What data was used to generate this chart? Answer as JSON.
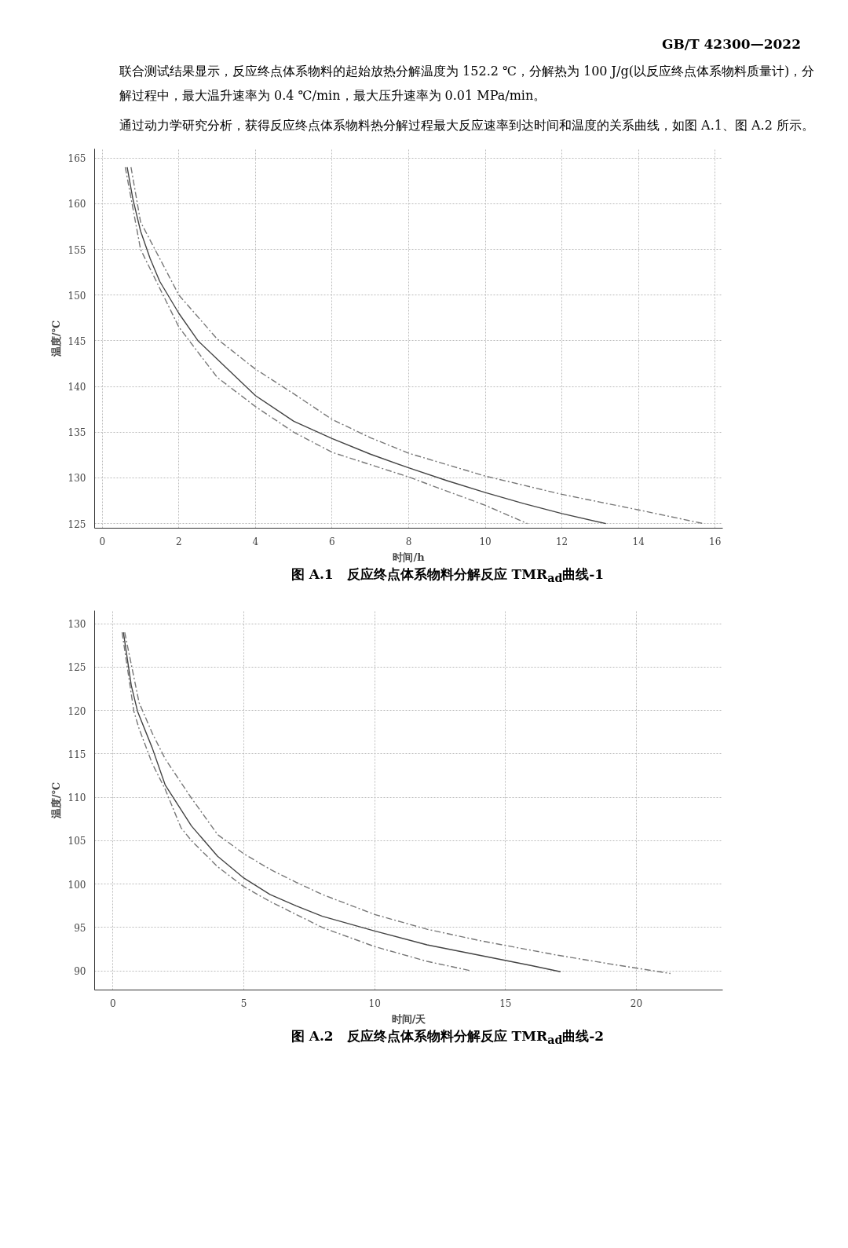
{
  "chart_data": [
    {
      "type": "line",
      "title": "图 A.1　反应终点体系物料分解反应 TMR$_{ad}$曲线-1",
      "xlabel": "时间/h",
      "ylabel": "温度/℃",
      "annotations": [
        "GB/T 42300—2022",
        "联合测试结果显示，反应终点体系物料的起始放热分解温度为 152.2 ℃，分解热为 100 J/g(以反应终点体系物料质量计)，分解过程中，最大温升速率为 0.4 ℃/min，最大压升速率为 0.01 MPa/min。",
        "通过动力学研究分析，获得反应终点体系物料热分解过程最大反应速率到达时间和温度的关系曲线，如图 A.1、图 A.2 所示。"
      ],
      "xlim": [
        -0.2,
        16.2
      ],
      "ylim": [
        124.5,
        166
      ],
      "xticks": [
        0,
        2,
        4,
        6,
        8,
        10,
        12,
        14,
        16
      ],
      "yticks": [
        125,
        130,
        135,
        140,
        145,
        150,
        155,
        160,
        165
      ],
      "grid": true,
      "marker": "none",
      "series": [
        {
          "color": "#777777",
          "line_style": "dashed",
          "x": [
            0.75,
            1,
            1.5,
            2,
            3,
            4,
            5,
            6,
            7,
            8,
            10,
            12,
            14,
            15.7
          ],
          "values": [
            164,
            158,
            154,
            150,
            145.2,
            141.9,
            139.2,
            136.4,
            134.4,
            132.7,
            130.2,
            128.2,
            126.5,
            125
          ]
        },
        {
          "color": "#444444",
          "line_style": "solid",
          "x": [
            0.65,
            0.8,
            1,
            1.25,
            1.5,
            2,
            2.5,
            3,
            4,
            5,
            6,
            7,
            8,
            9,
            10,
            11,
            12,
            13.15
          ],
          "values": [
            164,
            160.5,
            157,
            154,
            151.5,
            148,
            145,
            143,
            139,
            136.2,
            134.3,
            132.6,
            131.1,
            129.7,
            128.4,
            127.2,
            126.1,
            125
          ]
        },
        {
          "color": "#777777",
          "line_style": "dashed",
          "x": [
            0.6,
            1,
            2,
            3,
            4,
            5,
            6,
            8,
            10,
            11.1
          ],
          "values": [
            164,
            155,
            146.5,
            141,
            137.8,
            135,
            132.8,
            130.1,
            127,
            125
          ]
        }
      ]
    },
    {
      "type": "line",
      "title": "图 A.2　反应终点体系物料分解反应 TMR$_{ad}$曲线-2",
      "xlabel": "时间/天",
      "ylabel": "温度/℃",
      "xlim": [
        -0.7,
        23.3
      ],
      "ylim": [
        87.8,
        131.5
      ],
      "xticks": [
        0,
        5,
        10,
        15,
        20
      ],
      "yticks": [
        90,
        95,
        100,
        105,
        110,
        115,
        120,
        125,
        130
      ],
      "grid": true,
      "marker": "none",
      "series": [
        {
          "color": "#777777",
          "line_style": "dashed",
          "x": [
            0.45,
            1,
            1.5,
            2,
            3,
            4,
            5,
            6,
            7,
            8,
            10,
            12,
            14,
            17,
            19,
            21.3
          ],
          "values": [
            129,
            120.9,
            117.4,
            114.4,
            109.9,
            105.7,
            103.5,
            101.7,
            100.2,
            98.8,
            96.5,
            94.8,
            93.5,
            91.8,
            90.8,
            89.7
          ]
        },
        {
          "color": "#444444",
          "line_style": "solid",
          "x": [
            0.4,
            0.7,
            0.94,
            1.5,
            2,
            3,
            4,
            5,
            6,
            7,
            8,
            10,
            12,
            14,
            16,
            17.1
          ],
          "values": [
            129,
            122.9,
            119.9,
            115.7,
            111.4,
            106.7,
            103.2,
            100.7,
            98.8,
            97.5,
            96.3,
            94.6,
            93,
            91.8,
            90.6,
            89.9
          ]
        },
        {
          "color": "#777777",
          "line_style": "dashed",
          "x": [
            0.35,
            0.8,
            1,
            1.5,
            2,
            2.6,
            3,
            4,
            5,
            6,
            8,
            10,
            12,
            13.7
          ],
          "values": [
            129,
            119.9,
            117.9,
            113.9,
            110.9,
            106.5,
            105,
            102,
            99.7,
            98,
            95,
            92.8,
            91.1,
            90
          ]
        }
      ]
    }
  ]
}
